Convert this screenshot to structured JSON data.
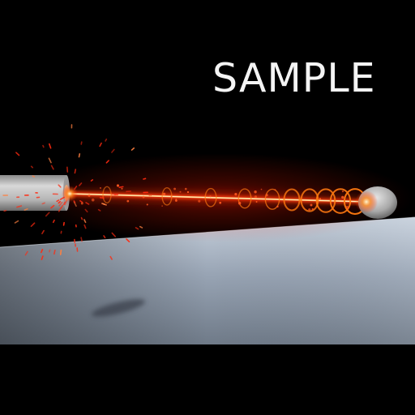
{
  "watermark": {
    "text": "SAMPLE"
  },
  "scene": {
    "background_color": "#000000",
    "floor_color": "#8e9aaa",
    "emitter_color": "#c9c9c9",
    "target_color": "#bdbdbd",
    "beam_core_color": "#fff1c0",
    "beam_glow_color": "#ff2a00",
    "ring_color": "#ff7a10",
    "spark_color": "#ff2a10",
    "icons": [
      "emitter-cylinder",
      "target-sphere",
      "laser-beam",
      "energy-rings",
      "spark-particles",
      "floor-shadow"
    ]
  }
}
